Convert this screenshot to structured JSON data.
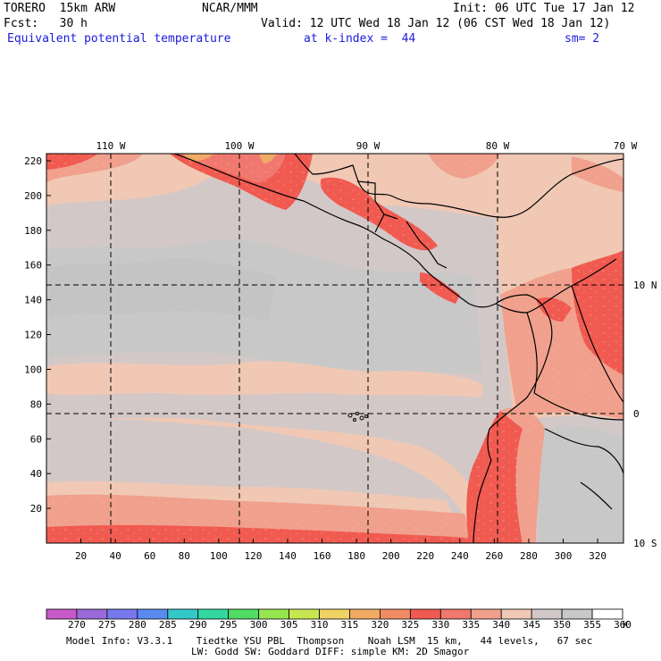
{
  "header": {
    "model": "TORERO  15km ARW",
    "org": "NCAR/MMM",
    "init": "Init: 06 UTC Tue 17 Jan 12",
    "fcst": "Fcst:   30 h",
    "valid": "Valid: 12 UTC Wed 18 Jan 12 (06 CST Wed 18 Jan 12)",
    "field": "Equivalent potential temperature",
    "level": "at k-index =  44",
    "smooth": "sm= 2"
  },
  "axes": {
    "y_ticks": [
      "20",
      "40",
      "60",
      "80",
      "100",
      "120",
      "140",
      "160",
      "180",
      "200",
      "220"
    ],
    "x_ticks": [
      "20",
      "40",
      "60",
      "80",
      "100",
      "120",
      "140",
      "160",
      "180",
      "200",
      "220",
      "240",
      "260",
      "280",
      "300",
      "320"
    ],
    "lon_labels": [
      "110 W",
      "100 W",
      "90 W",
      "80 W",
      "70 W"
    ],
    "lat_labels": [
      "10 N",
      "0",
      "10 S"
    ]
  },
  "colorbar": {
    "labels": [
      "270",
      "275",
      "280",
      "285",
      "290",
      "295",
      "300",
      "305",
      "310",
      "315",
      "320",
      "325",
      "330",
      "335",
      "340",
      "345",
      "350",
      "355",
      "360"
    ],
    "unit": "K",
    "colors": [
      "#c85ac8",
      "#9a6ad8",
      "#7878ee",
      "#5a8af0",
      "#32c8c8",
      "#32d8a0",
      "#50dc64",
      "#96e650",
      "#c8e650",
      "#f0d264",
      "#f0aa64",
      "#f08c64",
      "#f05a50",
      "#f0786e",
      "#f0a08c",
      "#f0c8b4",
      "#d2c8c8",
      "#c8c8c8",
      "#ffffff"
    ]
  },
  "footer": {
    "line1": "Model Info: V3.3.1    Tiedtke YSU PBL  Thompson    Noah LSM  15 km,   44 levels,   67 sec",
    "line2": "LW: Godd SW: Goddard DIFF: simple KM: 2D Smagor"
  }
}
